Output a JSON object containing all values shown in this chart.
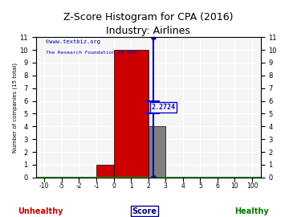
{
  "title": "Z-Score Histogram for CPA (2016)",
  "subtitle": "Industry: Airlines",
  "watermark1": "©www.textbiz.org",
  "watermark2": "The Research Foundation of SUNY",
  "ylabel": "Number of companies (15 total)",
  "xlabel_center": "Score",
  "xlabel_left": "Unhealthy",
  "xlabel_right": "Healthy",
  "tick_labels": [
    "-10",
    "-5",
    "-2",
    "-1",
    "0",
    "1",
    "2",
    "3",
    "4",
    "5",
    "6",
    "10",
    "100"
  ],
  "yticks": [
    0,
    1,
    2,
    3,
    4,
    5,
    6,
    7,
    8,
    9,
    10,
    11
  ],
  "ylim": [
    0,
    11
  ],
  "z_score_label": "2.2724",
  "title_fontsize": 9,
  "axis_bg": "#f5f5f5",
  "grid_color": "#ffffff",
  "watermark_color": "#0000cc",
  "unhealthy_color": "#cc0000",
  "healthy_color": "#007700",
  "score_color": "#000080",
  "zscore_line_color": "#0000cc",
  "bar1_color": "#cc0000",
  "bar2_color": "#808080",
  "green_line_color": "#00aa00"
}
